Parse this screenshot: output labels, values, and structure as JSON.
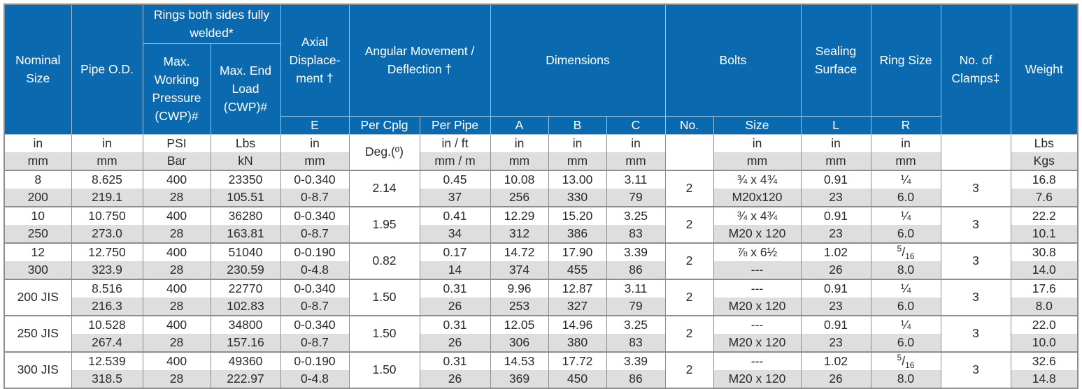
{
  "header": {
    "nominal_size": "Nominal Size",
    "pipe_od": "Pipe O.D.",
    "rings_group": "Rings both sides fully welded*",
    "max_working_pressure": "Max. Working Pressure (CWP)#",
    "max_end_load": "Max. End Load (CWP)#",
    "axial_displacement": "Axial Displace- ment †",
    "axial_sub": "E",
    "angular": "Angular Movement / Deflection †",
    "per_cplg": "Per Cplg",
    "per_pipe": "Per  Pipe",
    "dimensions": "Dimensions",
    "dim_a": "A",
    "dim_b": "B",
    "dim_c": "C",
    "bolts": "Bolts",
    "bolts_no": "No.",
    "bolts_size": "Size",
    "sealing_surface": "Sealing Surface",
    "sealing_sub": "L",
    "ring_size": "Ring Size",
    "ring_sub": "R",
    "no_clamps": "No. of Clamps‡",
    "weight": "Weight"
  },
  "units": {
    "row1": [
      "in",
      "in",
      "PSI",
      "Lbs",
      "in",
      "Deg.(º)",
      "in / ft",
      "in",
      "in",
      "in",
      "",
      "in",
      "in",
      "in",
      "",
      "Lbs"
    ],
    "row2": [
      "mm",
      "mm",
      "Bar",
      "kN",
      "mm",
      "",
      "mm /  m",
      "mm",
      "mm",
      "mm",
      "",
      "mm",
      "mm",
      "mm",
      "",
      "Kgs"
    ]
  },
  "rows": [
    {
      "size_in": "8",
      "size_mm": "200",
      "od_in": "8.625",
      "od_mm": "219.1",
      "press_psi": "400",
      "press_bar": "28",
      "load_lbs": "23350",
      "load_kn": "105.51",
      "axial_in": "0-0.340",
      "axial_mm": "0-8.7",
      "per_cplg": "2.14",
      "pipe_in": "0.45",
      "pipe_mm": "37",
      "a_in": "10.08",
      "a_mm": "256",
      "b_in": "13.00",
      "b_mm": "330",
      "c_in": "3.11",
      "c_mm": "79",
      "bolts_no": "2",
      "bolt_in": "¾ x 4¾",
      "bolt_mm": "M20x120",
      "seal_in": "0.91",
      "seal_mm": "23",
      "ring_in": "¼",
      "ring_mm": "6.0",
      "clamps": "3",
      "wt_lbs": "16.8",
      "wt_kg": "7.6"
    },
    {
      "size_in": "10",
      "size_mm": "250",
      "od_in": "10.750",
      "od_mm": "273.0",
      "press_psi": "400",
      "press_bar": "28",
      "load_lbs": "36280",
      "load_kn": "163.81",
      "axial_in": "0-0.340",
      "axial_mm": "0-8.7",
      "per_cplg": "1.95",
      "pipe_in": "0.41",
      "pipe_mm": "34",
      "a_in": "12.29",
      "a_mm": "312",
      "b_in": "15.20",
      "b_mm": "386",
      "c_in": "3.25",
      "c_mm": "83",
      "bolts_no": "2",
      "bolt_in": "¾ x 4¾",
      "bolt_mm": "M20 x 120",
      "seal_in": "0.91",
      "seal_mm": "23",
      "ring_in": "¼",
      "ring_mm": "6.0",
      "clamps": "3",
      "wt_lbs": "22.2",
      "wt_kg": "10.1"
    },
    {
      "size_in": "12",
      "size_mm": "300",
      "od_in": "12.750",
      "od_mm": "323.9",
      "press_psi": "400",
      "press_bar": "28",
      "load_lbs": "51040",
      "load_kn": "230.59",
      "axial_in": "0-0.190",
      "axial_mm": "0-4.8",
      "per_cplg": "0.82",
      "pipe_in": "0.17",
      "pipe_mm": "14",
      "a_in": "14.72",
      "a_mm": "374",
      "b_in": "17.90",
      "b_mm": "455",
      "c_in": "3.39",
      "c_mm": "86",
      "bolts_no": "2",
      "bolt_in": "⅞ x 6½",
      "bolt_mm": "---",
      "seal_in": "1.02",
      "seal_mm": "26",
      "ring_in": "5/16",
      "ring_mm": "8.0",
      "clamps": "3",
      "wt_lbs": "30.8",
      "wt_kg": "14.0"
    },
    {
      "size": "200 JIS",
      "od_in": "8.516",
      "od_mm": "216.3",
      "press_psi": "400",
      "press_bar": "28",
      "load_lbs": "22770",
      "load_kn": "102.83",
      "axial_in": "0-0.340",
      "axial_mm": "0-8.7",
      "per_cplg": "1.50",
      "pipe_in": "0.31",
      "pipe_mm": "26",
      "a_in": "9.96",
      "a_mm": "253",
      "b_in": "12.87",
      "b_mm": "327",
      "c_in": "3.11",
      "c_mm": "79",
      "bolts_no": "2",
      "bolt_in": "---",
      "bolt_mm": "M20 x 120",
      "seal_in": "0.91",
      "seal_mm": "23",
      "ring_in": "¼",
      "ring_mm": "6.0",
      "clamps": "3",
      "wt_lbs": "17.6",
      "wt_kg": "8.0"
    },
    {
      "size": "250 JIS",
      "od_in": "10.528",
      "od_mm": "267.4",
      "press_psi": "400",
      "press_bar": "28",
      "load_lbs": "34800",
      "load_kn": "157.16",
      "axial_in": "0-0.340",
      "axial_mm": "0-8.7",
      "per_cplg": "1.50",
      "pipe_in": "0.31",
      "pipe_mm": "26",
      "a_in": "12.05",
      "a_mm": "306",
      "b_in": "14.96",
      "b_mm": "380",
      "c_in": "3.25",
      "c_mm": "83",
      "bolts_no": "2",
      "bolt_in": "---",
      "bolt_mm": "M20 x 120",
      "seal_in": "0.91",
      "seal_mm": "23",
      "ring_in": "¼",
      "ring_mm": "6.0",
      "clamps": "3",
      "wt_lbs": "22.0",
      "wt_kg": "10.0"
    },
    {
      "size": "300 JIS",
      "od_in": "12.539",
      "od_mm": "318.5",
      "press_psi": "400",
      "press_bar": "28",
      "load_lbs": "49360",
      "load_kn": "222.97",
      "axial_in": "0-0.190",
      "axial_mm": "0-4.8",
      "per_cplg": "1.50",
      "pipe_in": "0.31",
      "pipe_mm": "26",
      "a_in": "14.53",
      "a_mm": "369",
      "b_in": "17.72",
      "b_mm": "450",
      "c_in": "3.39",
      "c_mm": "86",
      "bolts_no": "2",
      "bolt_in": "---",
      "bolt_mm": "M20 x 120",
      "seal_in": "1.02",
      "seal_mm": "26",
      "ring_in": "5/16",
      "ring_mm": "8.0",
      "clamps": "3",
      "wt_lbs": "32.6",
      "wt_kg": "14.8"
    }
  ],
  "colors": {
    "header_bg": "#0b6aaf",
    "header_text": "#ffffff",
    "stripe": "#dedede",
    "grid": "#8d8d8d"
  }
}
